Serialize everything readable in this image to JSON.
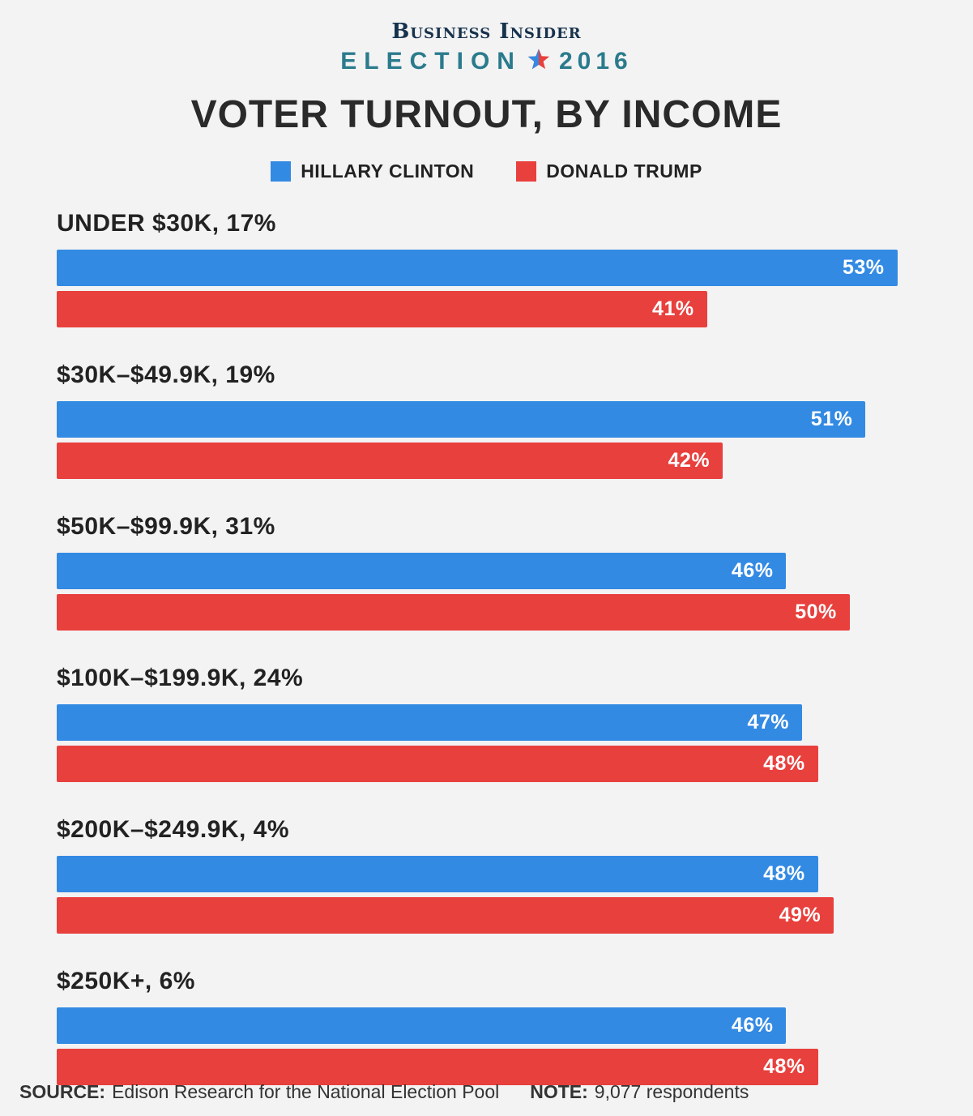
{
  "header": {
    "brand": "Business Insider",
    "election_label": "ELECTION",
    "election_year": "2016",
    "title": "VOTER TURNOUT, BY INCOME"
  },
  "legend": [
    {
      "label": "HILLARY CLINTON",
      "color": "#338ae3"
    },
    {
      "label": "DONALD TRUMP",
      "color": "#e8403d"
    }
  ],
  "chart_data": {
    "type": "bar",
    "orientation": "horizontal",
    "title": "VOTER TURNOUT, BY INCOME",
    "value_suffix": "%",
    "xmax": 54.2,
    "series": [
      {
        "name": "Hillary Clinton",
        "color": "#338ae3"
      },
      {
        "name": "Donald Trump",
        "color": "#e8403d"
      }
    ],
    "groups": [
      {
        "label": "UNDER $30K, 17%",
        "values": [
          53,
          41
        ]
      },
      {
        "label": "$30K–$49.9K, 19%",
        "values": [
          51,
          42
        ]
      },
      {
        "label": "$50K–$99.9K, 31%",
        "values": [
          46,
          50
        ]
      },
      {
        "label": "$100K–$199.9K, 24%",
        "values": [
          47,
          48
        ]
      },
      {
        "label": "$200K–$249.9K, 4%",
        "values": [
          48,
          49
        ]
      },
      {
        "label": "$250K+, 6%",
        "values": [
          46,
          48
        ]
      }
    ]
  },
  "footer": {
    "source_label": "SOURCE:",
    "source_text": "Edison Research for the National Election Pool",
    "note_label": "NOTE:",
    "note_text": "9,077 respondents"
  }
}
